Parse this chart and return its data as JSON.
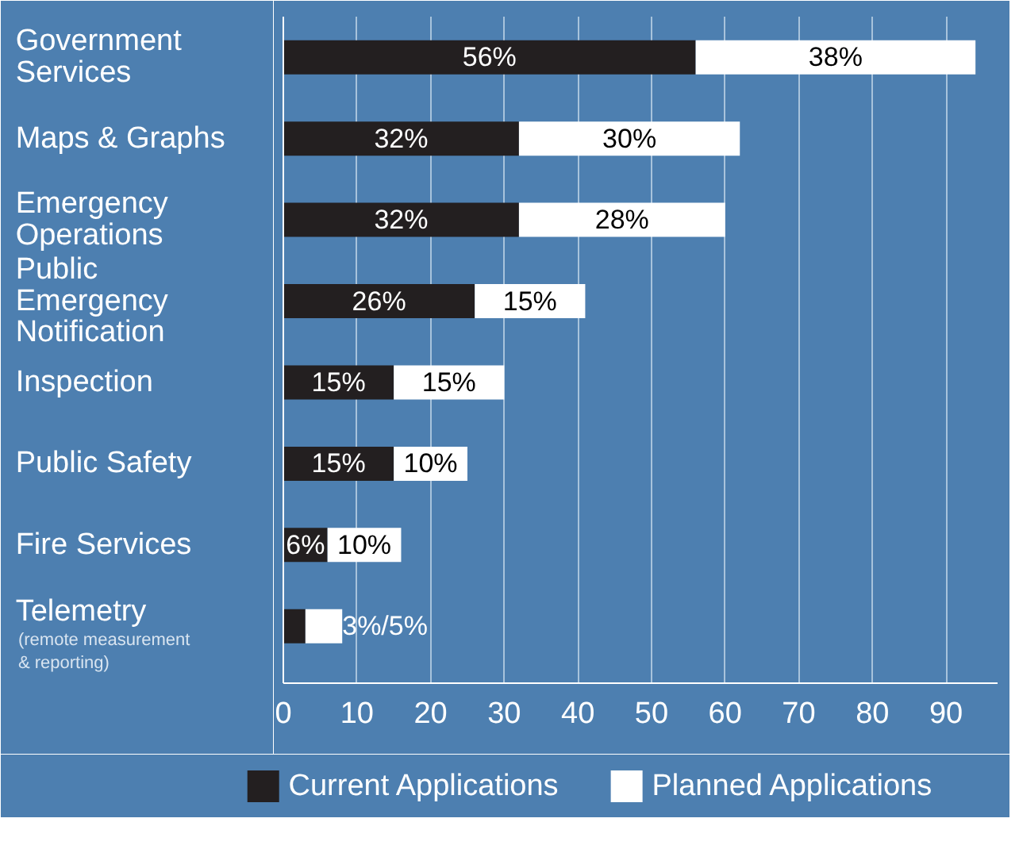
{
  "chart_data": {
    "type": "bar",
    "orientation": "horizontal",
    "stacked": true,
    "categories": [
      "Government\nServices",
      "Maps & Graphs",
      "Emergency\nOperations",
      "Public\nEmergency\nNotification",
      "Inspection",
      "Public Safety",
      "Fire Services",
      "Telemetry"
    ],
    "series": [
      {
        "name": "Current Applications",
        "color": "#231f20",
        "values": [
          56,
          32,
          32,
          26,
          15,
          15,
          6,
          3
        ],
        "value_labels": [
          "56%",
          "32%",
          "32%",
          "26%",
          "15%",
          "15%",
          "6%",
          null
        ]
      },
      {
        "name": "Planned Applications",
        "color": "#ffffff",
        "values": [
          38,
          30,
          28,
          15,
          15,
          10,
          10,
          5
        ],
        "value_labels": [
          "38%",
          "30%",
          "28%",
          "15%",
          "15%",
          "10%",
          "10%",
          null
        ]
      }
    ],
    "xlim": [
      0,
      97
    ],
    "xticks": [
      0,
      10,
      20,
      30,
      40,
      50,
      60,
      70,
      80,
      90
    ],
    "annotations": [
      {
        "text": "3%/5%",
        "x": 8,
        "y": "Telemetry"
      },
      "(remote measurement\n& reporting)"
    ],
    "grid": "x",
    "legend": "bottom"
  }
}
